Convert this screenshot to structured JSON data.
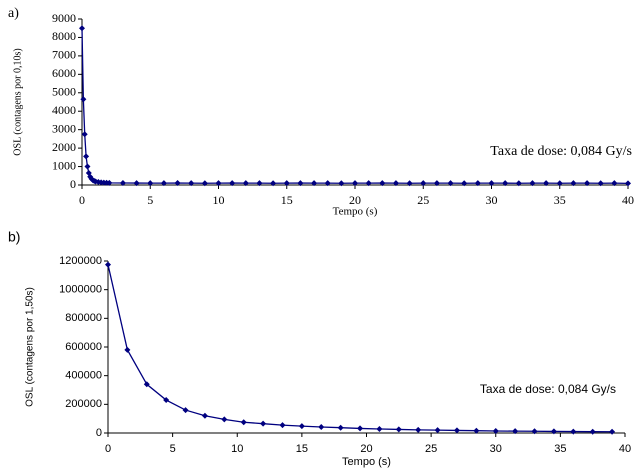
{
  "chart_data": [
    {
      "type": "line",
      "panel": "a)",
      "xlabel": "Tempo (s)",
      "ylabel": "OSL (contagens por 0,10s)",
      "annotation": "Taxa de dose: 0,084 Gy/s",
      "x": [
        0,
        0.1,
        0.2,
        0.3,
        0.4,
        0.5,
        0.6,
        0.7,
        0.8,
        0.9,
        1.0,
        1.2,
        1.4,
        1.6,
        1.8,
        2.0,
        3,
        4,
        5,
        6,
        7,
        8,
        9,
        10,
        11,
        12,
        13,
        14,
        15,
        16,
        17,
        18,
        19,
        20,
        21,
        22,
        23,
        24,
        25,
        26,
        27,
        28,
        29,
        30,
        31,
        32,
        33,
        34,
        35,
        36,
        37,
        38,
        39,
        40
      ],
      "series": [
        {
          "name": "OSL",
          "color": "#000080",
          "values": [
            8500,
            4650,
            2750,
            1550,
            1000,
            650,
            450,
            330,
            260,
            220,
            190,
            160,
            140,
            130,
            120,
            115,
            110,
            105,
            100,
            100,
            110,
            100,
            95,
            100,
            105,
            100,
            100,
            95,
            100,
            105,
            100,
            100,
            95,
            100,
            100,
            105,
            100,
            95,
            100,
            100,
            100,
            95,
            100,
            100,
            100,
            95,
            100,
            100,
            95,
            100,
            100,
            95,
            100,
            90
          ]
        }
      ],
      "xlim": [
        0,
        40
      ],
      "xticks": [
        0,
        5,
        10,
        15,
        20,
        25,
        30,
        35,
        40
      ],
      "ylim": [
        0,
        9000
      ],
      "yticks": [
        0,
        1000,
        2000,
        3000,
        4000,
        5000,
        6000,
        7000,
        8000,
        9000
      ]
    },
    {
      "type": "line",
      "panel": "b)",
      "xlabel": "Tempo (s)",
      "ylabel": "OSL (contagens por 1,50s)",
      "annotation": "Taxa de dose: 0,084 Gy/s",
      "x": [
        0,
        1.5,
        3,
        4.5,
        6,
        7.5,
        9,
        10.5,
        12,
        13.5,
        15,
        16.5,
        18,
        19.5,
        21,
        22.5,
        24,
        25.5,
        27,
        28.5,
        30,
        31.5,
        33,
        34.5,
        36,
        37.5,
        39
      ],
      "series": [
        {
          "name": "OSL",
          "color": "#000080",
          "values": [
            1175000,
            580000,
            340000,
            230000,
            160000,
            120000,
            95000,
            75000,
            65000,
            55000,
            48000,
            42000,
            37000,
            32000,
            28000,
            25000,
            22000,
            20000,
            18000,
            16000,
            14000,
            13000,
            12000,
            11000,
            10000,
            9000,
            8500
          ]
        }
      ],
      "xlim": [
        0,
        40
      ],
      "xticks": [
        0,
        5,
        10,
        15,
        20,
        25,
        30,
        35,
        40
      ],
      "ylim": [
        0,
        1200000
      ],
      "yticks": [
        0,
        200000,
        400000,
        600000,
        800000,
        1000000,
        1200000
      ]
    }
  ]
}
